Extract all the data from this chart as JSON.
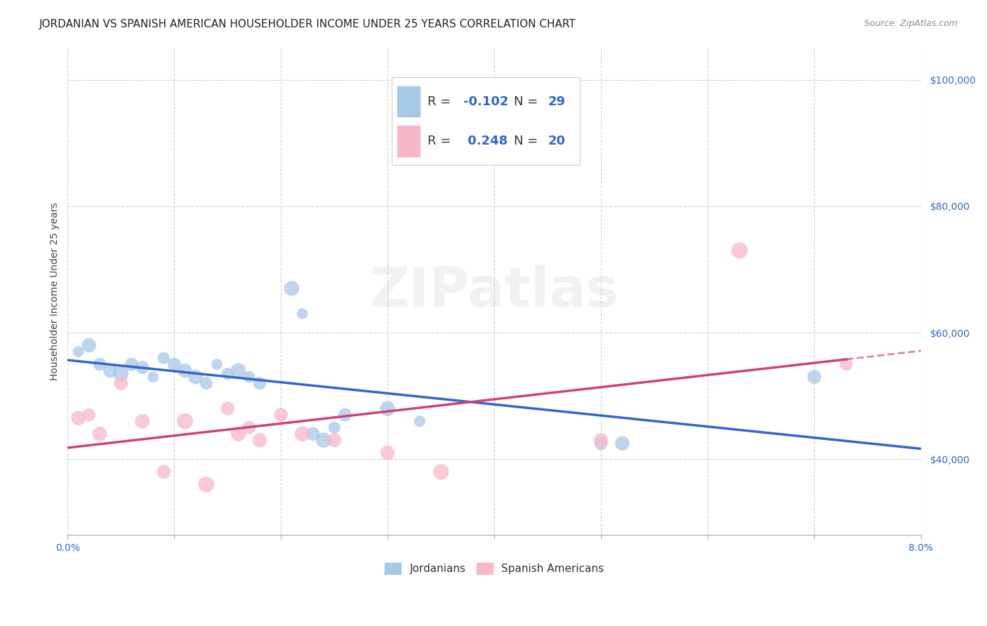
{
  "title": "JORDANIAN VS SPANISH AMERICAN HOUSEHOLDER INCOME UNDER 25 YEARS CORRELATION CHART",
  "source": "Source: ZipAtlas.com",
  "ylabel": "Householder Income Under 25 years",
  "xlim": [
    0.0,
    0.08
  ],
  "ylim": [
    28000,
    105000
  ],
  "yticks": [
    40000,
    60000,
    80000,
    100000
  ],
  "ytick_labels": [
    "$40,000",
    "$60,000",
    "$80,000",
    "$100,000"
  ],
  "xtick_positions": [
    0.0,
    0.01,
    0.02,
    0.03,
    0.04,
    0.05,
    0.06,
    0.07,
    0.08
  ],
  "xtick_labels_show": {
    "0.0": "0.0%",
    "0.08": "8.0%"
  },
  "background_color": "#ffffff",
  "grid_color": "#d0d0d0",
  "watermark_text": "ZIPatlas",
  "jordanians_color": "#a8c8e8",
  "spanish_color": "#f8b8c8",
  "jordanians_line_color": "#3366cc",
  "spanish_line_color": "#cc4477",
  "title_color": "#222222",
  "source_color": "#888888",
  "tick_color": "#3366cc",
  "jordanians_R": -0.102,
  "jordanians_N": 29,
  "spanish_R": 0.248,
  "spanish_N": 20,
  "jordanians_x": [
    0.001,
    0.002,
    0.003,
    0.004,
    0.005,
    0.006,
    0.007,
    0.008,
    0.009,
    0.01,
    0.011,
    0.012,
    0.013,
    0.014,
    0.015,
    0.016,
    0.017,
    0.018,
    0.021,
    0.022,
    0.023,
    0.024,
    0.025,
    0.026,
    0.03,
    0.033,
    0.05,
    0.052,
    0.07
  ],
  "jordanians_y": [
    57000,
    58000,
    55000,
    54000,
    53500,
    55000,
    54500,
    53000,
    56000,
    55000,
    54000,
    53000,
    52000,
    55000,
    53500,
    54000,
    53000,
    52000,
    67000,
    63000,
    44000,
    43000,
    45000,
    47000,
    48000,
    46000,
    42500,
    42500,
    53000
  ],
  "spanish_x": [
    0.001,
    0.002,
    0.003,
    0.005,
    0.007,
    0.009,
    0.011,
    0.013,
    0.015,
    0.016,
    0.017,
    0.018,
    0.02,
    0.022,
    0.025,
    0.03,
    0.035,
    0.05,
    0.063,
    0.073
  ],
  "spanish_y": [
    46500,
    47000,
    44000,
    52000,
    46000,
    38000,
    46000,
    36000,
    48000,
    44000,
    45000,
    43000,
    47000,
    44000,
    43000,
    41000,
    38000,
    43000,
    73000,
    55000
  ],
  "title_fontsize": 11,
  "axis_label_fontsize": 10,
  "tick_fontsize": 10,
  "source_fontsize": 9,
  "legend_fontsize": 13
}
